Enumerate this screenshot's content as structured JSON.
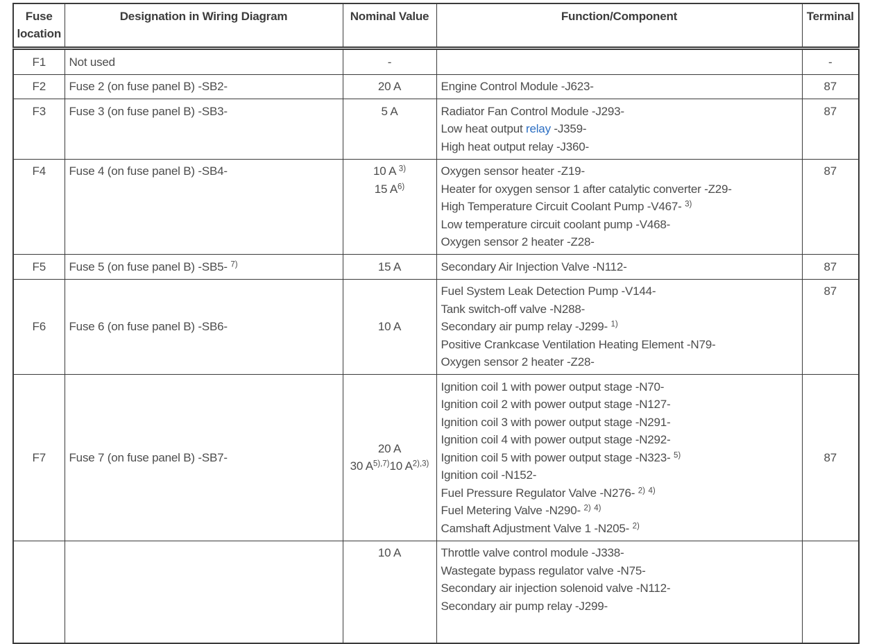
{
  "colors": {
    "border": "#3a3a3a",
    "text": "#4c4c4c",
    "header_text": "#3c3c3c",
    "link": "#2d6fc3"
  },
  "table": {
    "headers": [
      "Fuse location",
      "Designation in Wiring Diagram",
      "Nominal Value",
      "Function/Component",
      "Terminal"
    ],
    "rows": [
      {
        "fuse": "F1",
        "designation": [
          {
            "t": "Not used"
          }
        ],
        "nominal": [
          [
            {
              "t": "-"
            }
          ]
        ],
        "function_lines": [],
        "terminal": "-",
        "va": "middle",
        "tva": "middle",
        "cut": false
      },
      {
        "fuse": "F2",
        "designation": [
          {
            "t": "Fuse 2 (on fuse panel B) -SB2-"
          }
        ],
        "nominal": [
          [
            {
              "t": "20 A"
            }
          ]
        ],
        "function_lines": [
          [
            {
              "t": "Engine Control Module -J623-"
            }
          ]
        ],
        "terminal": "87",
        "va": "middle",
        "tva": "top",
        "cut": false
      },
      {
        "fuse": "F3",
        "designation": [
          {
            "t": "Fuse 3 (on fuse panel B) -SB3-"
          }
        ],
        "nominal": [
          [
            {
              "t": "5 A"
            }
          ]
        ],
        "function_lines": [
          [
            {
              "t": "Radiator Fan Control Module -J293-"
            }
          ],
          [
            {
              "t": "Low heat output "
            },
            {
              "link": "relay"
            },
            {
              "t": " -J359-"
            }
          ],
          [
            {
              "t": "High heat output relay -J360-"
            }
          ]
        ],
        "terminal": "87",
        "va": "top",
        "tva": "top",
        "cut": false
      },
      {
        "fuse": "F4",
        "designation": [
          {
            "t": "Fuse 4 (on fuse panel B) -SB4-"
          }
        ],
        "nominal": [
          [
            {
              "t": "10 A "
            },
            {
              "sup": "3)"
            }
          ],
          [
            {
              "t": "15 A"
            },
            {
              "sup": "6)"
            }
          ]
        ],
        "function_lines": [
          [
            {
              "t": "Oxygen sensor heater -Z19-"
            }
          ],
          [
            {
              "t": "Heater for oxygen sensor 1 after catalytic converter -Z29-"
            }
          ],
          [
            {
              "t": "High Temperature Circuit Coolant Pump -V467- "
            },
            {
              "sup": "3)"
            }
          ],
          [
            {
              "t": "Low temperature circuit coolant pump -V468-"
            }
          ],
          [
            {
              "t": "Oxygen sensor 2 heater -Z28-"
            }
          ]
        ],
        "terminal": "87",
        "va": "top",
        "tva": "top",
        "cut": false
      },
      {
        "fuse": "F5",
        "designation": [
          {
            "t": "Fuse 5 (on fuse panel B) -SB5- "
          },
          {
            "sup": "7)"
          }
        ],
        "nominal": [
          [
            {
              "t": "15 A"
            }
          ]
        ],
        "function_lines": [
          [
            {
              "t": "Secondary Air Injection Valve -N112-"
            }
          ]
        ],
        "terminal": "87",
        "va": "middle",
        "tva": "top",
        "cut": false
      },
      {
        "fuse": "F6",
        "designation": [
          {
            "t": "Fuse 6 (on fuse panel B) -SB6-"
          }
        ],
        "nominal": [
          [
            {
              "t": "10 A"
            }
          ]
        ],
        "function_lines": [
          [
            {
              "t": "Fuel System Leak Detection Pump -V144-"
            }
          ],
          [
            {
              "t": "Tank switch-off valve -N288-"
            }
          ],
          [
            {
              "t": "Secondary air pump relay -J299- "
            },
            {
              "sup": "1)"
            }
          ],
          [
            {
              "t": "Positive Crankcase Ventilation Heating Element -N79-"
            }
          ],
          [
            {
              "t": "Oxygen sensor 2 heater -Z28-"
            }
          ]
        ],
        "terminal": "87",
        "va": "middle",
        "tva": "top",
        "cut": false
      },
      {
        "fuse": "F7",
        "designation": [
          {
            "t": "Fuse 7 (on fuse panel B) -SB7-"
          }
        ],
        "nominal": [
          [
            {
              "t": "20 A"
            }
          ],
          [
            {
              "t": "30 A"
            },
            {
              "sup": "5),7)"
            },
            {
              "t": "10 A"
            },
            {
              "sup": "2),3)"
            }
          ]
        ],
        "function_lines": [
          [
            {
              "t": "Ignition coil 1 with power output stage -N70-"
            }
          ],
          [
            {
              "t": "Ignition coil 2 with power output stage -N127-"
            }
          ],
          [
            {
              "t": "Ignition coil 3 with power output stage -N291-"
            }
          ],
          [
            {
              "t": "Ignition coil 4 with power output stage -N292-"
            }
          ],
          [
            {
              "t": "Ignition coil 5 with power output stage -N323- "
            },
            {
              "sup": "5)"
            }
          ],
          [
            {
              "t": "Ignition coil -N152-"
            }
          ],
          [
            {
              "t": "Fuel Pressure Regulator Valve -N276- "
            },
            {
              "sup": "2)"
            },
            {
              "t": " "
            },
            {
              "sup": "4)"
            }
          ],
          [
            {
              "t": "Fuel Metering Valve -N290- "
            },
            {
              "sup": "2)"
            },
            {
              "t": " "
            },
            {
              "sup": "4)"
            }
          ],
          [
            {
              "t": "Camshaft Adjustment Valve 1 -N205- "
            },
            {
              "sup": "2)"
            }
          ]
        ],
        "terminal": "87",
        "va": "middle",
        "tva": "middle",
        "cut": false
      },
      {
        "fuse": "",
        "designation": [],
        "nominal": [
          [
            {
              "t": "10 A"
            }
          ]
        ],
        "function_lines": [
          [
            {
              "t": "Throttle valve control module -J338-"
            }
          ],
          [
            {
              "t": "Wastegate bypass regulator valve -N75-"
            }
          ],
          [
            {
              "t": "Secondary air injection solenoid valve -N112-"
            }
          ],
          [
            {
              "t": "Secondary air pump relay -J299-"
            }
          ]
        ],
        "terminal": "",
        "va": "top",
        "tva": "top",
        "cut": true
      }
    ]
  }
}
